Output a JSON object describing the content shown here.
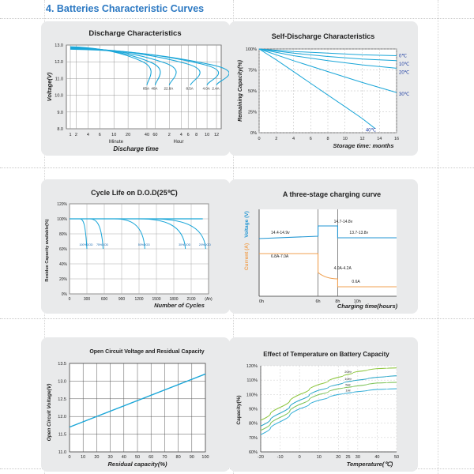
{
  "page": {
    "section_title": "4.  Batteries Characteristic Curves",
    "colors": {
      "accent": "#2b78c2",
      "curve": "#1aa6d8",
      "panel_bg": "#e9eaeb",
      "plot_bg": "#ffffff",
      "voltage_line": "#2196d3",
      "current_line": "#f0a050"
    }
  },
  "chart_data": [
    {
      "type": "line",
      "title": "Discharge Characteristics",
      "xlabel": "Discharge time",
      "ylabel": "Voltage(V)",
      "x_ticks": [
        "1",
        "2",
        "4",
        "6",
        "10",
        "20",
        "40",
        "60",
        "2",
        "4",
        "6",
        "8",
        "10",
        "12"
      ],
      "x_units": [
        "Minute",
        "Hour"
      ],
      "y_ticks": [
        "13.0",
        "12.0",
        "11.0",
        "10.0",
        "9.0",
        "8.0"
      ],
      "ylim": [
        8.0,
        13.0
      ],
      "series": [
        {
          "name": "85A",
          "end_x": 6.5
        },
        {
          "name": "40A",
          "end_x": 7.2
        },
        {
          "name": "22.8A",
          "end_x": 8.4
        },
        {
          "name": "8.5A",
          "end_x": 10.2
        },
        {
          "name": "4.0A",
          "end_x": 11.6
        },
        {
          "name": "2.4A",
          "end_x": 12.4
        }
      ]
    },
    {
      "type": "line",
      "title": "Self-Discharge Characteristics",
      "xlabel": "Storage time: months",
      "ylabel": "Remaining Capacity(%)",
      "x_ticks": [
        "0",
        "2",
        "4",
        "6",
        "8",
        "10",
        "12",
        "14",
        "16"
      ],
      "y_ticks": [
        "100%",
        "75%",
        "50%",
        "25%",
        "0%"
      ],
      "xlim": [
        0,
        16
      ],
      "ylim": [
        0,
        100
      ],
      "series": [
        {
          "name": "0℃",
          "x": [
            0,
            4,
            8,
            12,
            16
          ],
          "y": [
            100,
            97,
            95,
            93,
            92
          ]
        },
        {
          "name": "10℃",
          "x": [
            0,
            4,
            8,
            12,
            16
          ],
          "y": [
            100,
            95,
            91,
            88,
            86
          ]
        },
        {
          "name": "20℃",
          "x": [
            0,
            4,
            8,
            12,
            16
          ],
          "y": [
            100,
            92,
            86,
            81,
            77
          ]
        },
        {
          "name": "30℃",
          "x": [
            0,
            4,
            8,
            12,
            16
          ],
          "y": [
            100,
            86,
            73,
            60,
            48
          ]
        },
        {
          "name": "40℃",
          "x": [
            0,
            2,
            4,
            6,
            8,
            10,
            12,
            13.5
          ],
          "y": [
            100,
            87,
            73,
            59,
            45,
            31,
            17,
            5
          ]
        }
      ]
    },
    {
      "type": "line",
      "title": "Cycle Life on D.O.D(25℃)",
      "xlabel": "Number of Cycles",
      "ylabel": "Residue Capacity available(%)",
      "x_ticks": [
        "0",
        "300",
        "600",
        "900",
        "1200",
        "1500",
        "1800",
        "2100",
        "(Ah)"
      ],
      "y_ticks": [
        "120%",
        "100%",
        "80%",
        "60%",
        "40%",
        "20%",
        "0%"
      ],
      "xlim": [
        0,
        2400
      ],
      "ylim": [
        0,
        120
      ],
      "series": [
        {
          "name": "100%DOD",
          "end_x": 300
        },
        {
          "name": "75%DOD",
          "end_x": 580
        },
        {
          "name": "50%DOD",
          "end_x": 1300
        },
        {
          "name": "30%DOD",
          "end_x": 2000
        },
        {
          "name": "20%DOD",
          "end_x": 2350
        }
      ]
    },
    {
      "type": "line",
      "title": "A three-stage charging curve",
      "xlabel": "Charging time(hours)",
      "ylabel_voltage": "Voltage (V)",
      "ylabel_current": "Current (A)",
      "x_ticks": [
        "0h",
        "6h",
        "8h",
        "10h"
      ],
      "annotations": [
        "14.4-14.9v",
        "14.7-14.8v",
        "13.7-13.8v",
        "6.8A-7.0A",
        "4.0A-4.2A",
        "0.6A"
      ]
    },
    {
      "type": "line",
      "title": "Open Circuit Voltage and Residual Capacity",
      "xlabel": "Residual capacity(%)",
      "ylabel": "Open Circuit Voltage(V)",
      "x_ticks": [
        "0",
        "10",
        "20",
        "30",
        "40",
        "50",
        "60",
        "70",
        "80",
        "90",
        "100"
      ],
      "y_ticks": [
        "13.5",
        "13.0",
        "12.5",
        "12.0",
        "11.5",
        "11.0"
      ],
      "xlim": [
        0,
        100
      ],
      "ylim": [
        11.0,
        13.5
      ],
      "series": [
        {
          "name": "OCV",
          "x": [
            0,
            100
          ],
          "y": [
            11.7,
            13.2
          ]
        }
      ]
    },
    {
      "type": "line",
      "title": "Effect of Temperature on Battery Capacity",
      "xlabel": "Temperature(℃)",
      "ylabel": "Capacity(%)",
      "x_ticks": [
        "-20",
        "-10",
        "0",
        "10",
        "20",
        "25",
        "30",
        "40",
        "50"
      ],
      "y_ticks": [
        "120%",
        "110%",
        "100%",
        "90%",
        "80%",
        "70%",
        "60%"
      ],
      "xlim": [
        -20,
        50
      ],
      "ylim": [
        60,
        120
      ],
      "series": [
        {
          "name": "20Hr",
          "color": "#8dc63f",
          "x": [
            -20,
            -10,
            0,
            10,
            20,
            25,
            30,
            40,
            50
          ],
          "y": [
            82,
            91,
            100,
            107,
            112,
            114,
            116,
            118,
            118.5
          ]
        },
        {
          "name": "10Hr",
          "color": "#2aa6c8",
          "x": [
            -20,
            -10,
            0,
            10,
            20,
            25,
            30,
            40,
            50
          ],
          "y": [
            78,
            87,
            96,
            103,
            107,
            109,
            110,
            112,
            113
          ]
        },
        {
          "name": "5Hr",
          "color": "#7fc45a",
          "x": [
            -20,
            -10,
            0,
            10,
            20,
            25,
            30,
            40,
            50
          ],
          "y": [
            75,
            84,
            93,
            100,
            104,
            105,
            106,
            108,
            108.5
          ]
        },
        {
          "name": "1Hr",
          "color": "#3ab0d8",
          "x": [
            -20,
            -10,
            0,
            10,
            20,
            25,
            30,
            40,
            50
          ],
          "y": [
            72,
            81,
            90,
            96,
            100,
            101,
            102,
            103.5,
            104
          ]
        }
      ]
    }
  ]
}
